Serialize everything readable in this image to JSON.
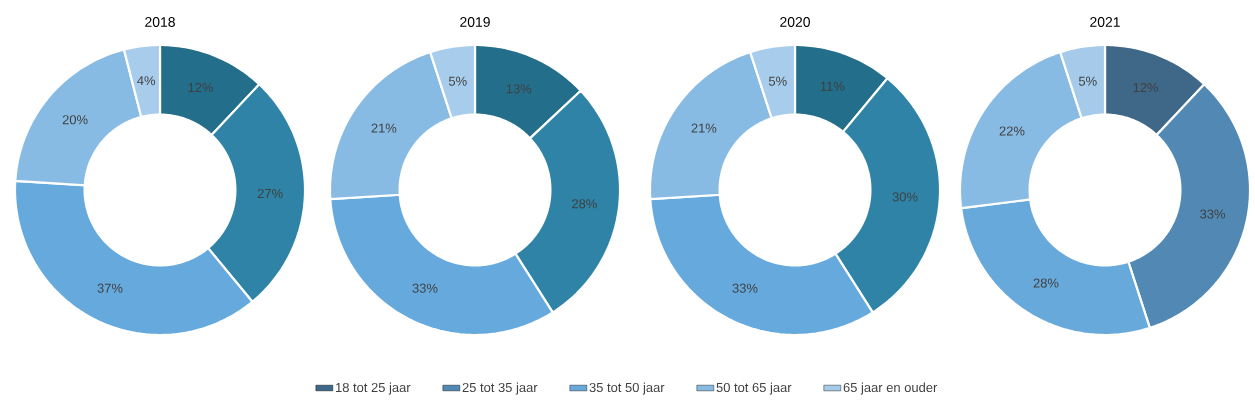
{
  "chart_data": [
    {
      "type": "donut",
      "title": "2018",
      "categories": [
        null,
        null,
        null,
        null,
        null
      ],
      "values": [
        12,
        27,
        37,
        20,
        4
      ],
      "value_labels": [
        "12%",
        "27%",
        "37%",
        "20%",
        "4%"
      ],
      "colors": [
        "#236e8a",
        "#2e83a6",
        "#66aadd",
        "#88bbe3",
        "#a8cdec"
      ]
    },
    {
      "type": "donut",
      "title": "2019",
      "categories": [
        null,
        null,
        null,
        null,
        null
      ],
      "values": [
        13,
        28,
        33,
        21,
        5
      ],
      "value_labels": [
        "13%",
        "28%",
        "33%",
        "21%",
        "5%"
      ],
      "colors": [
        "#236e8a",
        "#2e83a6",
        "#66aadd",
        "#88bbe3",
        "#a8cdec"
      ]
    },
    {
      "type": "donut",
      "title": "2020",
      "categories": [
        null,
        null,
        null,
        null,
        null
      ],
      "values": [
        11,
        30,
        33,
        21,
        5
      ],
      "value_labels": [
        "11%",
        "30%",
        "33%",
        "21%",
        "5%"
      ],
      "colors": [
        "#236e8a",
        "#2e83a6",
        "#66aadd",
        "#88bbe3",
        "#a8cdec"
      ]
    },
    {
      "type": "donut",
      "title": "2021",
      "categories": [
        "18 tot 25 jaar",
        "25 tot 35 jaar",
        "35 tot 50 jaar",
        "50 tot 65 jaar",
        "65 jaar en ouder"
      ],
      "values": [
        12,
        33,
        28,
        22,
        5
      ],
      "value_labels": [
        "12%",
        "33%",
        "28%",
        "22%",
        "5%"
      ],
      "colors": [
        "#3f6787",
        "#5189b4",
        "#68a9db",
        "#88bbe3",
        "#a6cbea"
      ],
      "legend": "bottom"
    }
  ]
}
